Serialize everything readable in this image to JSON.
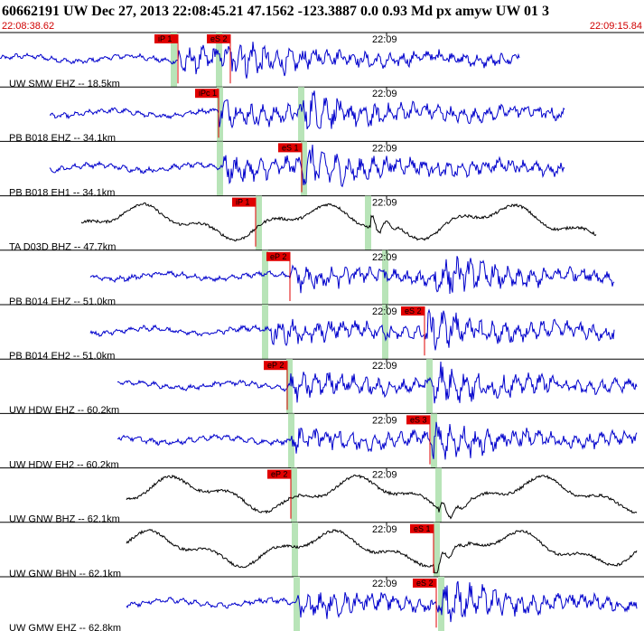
{
  "header": {
    "event": "60662191 UW Dec 27, 2013 22:08:45.21   47.1562 -123.3887  0.0 0.93 Md px amyw UW 01   3",
    "start_time": "22:08:38.62",
    "end_time": "22:09:15.84"
  },
  "traces": [
    {
      "label": "UW SMW EHZ -- 18.5km",
      "time_label": "22:09",
      "picks": [
        {
          "label": "iP 1"
        },
        {
          "label": "eS 2"
        }
      ]
    },
    {
      "label": "PB B018 EHZ -- 34.1km",
      "time_label": "22:09",
      "picks": [
        {
          "label": "iPc 1"
        }
      ]
    },
    {
      "label": "PB B018 EH1 -- 34.1km",
      "time_label": "22:09",
      "picks": [
        {
          "label": "eS 1"
        }
      ]
    },
    {
      "label": "TA D03D BHZ -- 47.7km",
      "time_label": "22:09",
      "picks": [
        {
          "label": "iP 1"
        }
      ]
    },
    {
      "label": "PB B014 EHZ -- 51.0km",
      "time_label": "22:09",
      "picks": [
        {
          "label": "eP 2"
        }
      ]
    },
    {
      "label": "PB B014 EH2 -- 51.0km",
      "time_label": "22:09",
      "picks": [
        {
          "label": "eS 2"
        }
      ]
    },
    {
      "label": "UW HDW EHZ -- 60.2km",
      "time_label": "22:09",
      "picks": [
        {
          "label": "eP 2"
        }
      ]
    },
    {
      "label": "UW HDW EH2 -- 60.2km",
      "time_label": "22:09",
      "picks": [
        {
          "label": "eS 3"
        }
      ]
    },
    {
      "label": "UW GNW BHZ -- 62.1km",
      "time_label": "22:09",
      "picks": [
        {
          "label": "eP 2"
        }
      ]
    },
    {
      "label": "UW GNW BHN -- 62.1km",
      "time_label": "22:09",
      "picks": [
        {
          "label": "eS 1"
        }
      ]
    },
    {
      "label": "UW GMW EHZ -- 62.8km",
      "time_label": "22:09",
      "picks": [
        {
          "label": "eS 2"
        }
      ]
    }
  ]
}
